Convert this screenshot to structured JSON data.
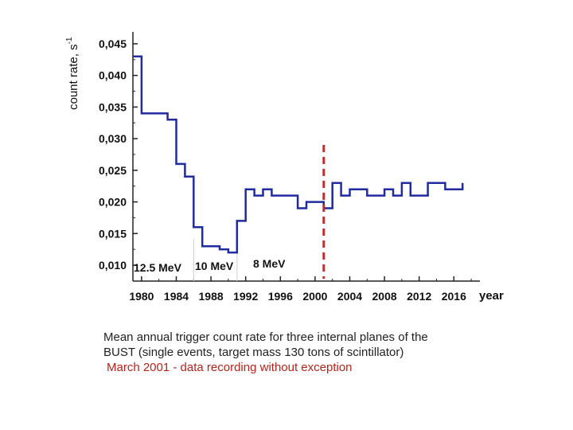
{
  "chart_data": {
    "type": "line",
    "style": "step",
    "ylabel": "count rate, s",
    "ylabel_superscript": "-1",
    "xlabel": "year",
    "ylim": [
      0.01,
      0.045
    ],
    "xlim": [
      1979,
      2019
    ],
    "y_ticks": [
      "0,010",
      "0,015",
      "0,020",
      "0,025",
      "0,030",
      "0,035",
      "0,040",
      "0,045"
    ],
    "y_tick_values": [
      0.01,
      0.015,
      0.02,
      0.025,
      0.03,
      0.035,
      0.04,
      0.045
    ],
    "x_ticks": [
      "1980",
      "1984",
      "1988",
      "1992",
      "1996",
      "2000",
      "2004",
      "2008",
      "2012",
      "2016"
    ],
    "x_tick_values": [
      1980,
      1984,
      1988,
      1992,
      1996,
      2000,
      2004,
      2008,
      2012,
      2016
    ],
    "series": [
      {
        "color": "#1f2b9e",
        "x": [
          1979,
          1980,
          1983,
          1984,
          1985,
          1986,
          1987,
          1989,
          1990,
          1991,
          1992,
          1993,
          1994,
          1995,
          1998,
          1999,
          2001,
          2002,
          2003,
          2004,
          2006,
          2007,
          2008,
          2009,
          2010,
          2011,
          2013,
          2015,
          2017
        ],
        "y": [
          0.043,
          0.034,
          0.033,
          0.026,
          0.024,
          0.016,
          0.013,
          0.0125,
          0.012,
          0.017,
          0.022,
          0.021,
          0.022,
          0.021,
          0.019,
          0.02,
          0.019,
          0.023,
          0.021,
          0.022,
          0.021,
          0.021,
          0.022,
          0.021,
          0.023,
          0.021,
          0.023,
          0.022,
          0.023
        ]
      }
    ],
    "x_end": 2017,
    "marker_line": {
      "x": 2001,
      "color": "#d62222",
      "style": "dashed"
    },
    "threshold_dividers": [
      1986,
      1991
    ],
    "annotations": [
      "12.5 MeV",
      "10 MeV",
      "8 MeV"
    ]
  },
  "caption": {
    "line1": "Mean  annual trigger  count rate for three internal planes of  the",
    "line2": "BUST (single events, target mass  130 tons of scintillator)",
    "line3": "March 2001 - data recording without exception"
  },
  "colors": {
    "series": "#1f2b9e",
    "marker": "#d62222",
    "caption_highlight": "#b8231a"
  }
}
